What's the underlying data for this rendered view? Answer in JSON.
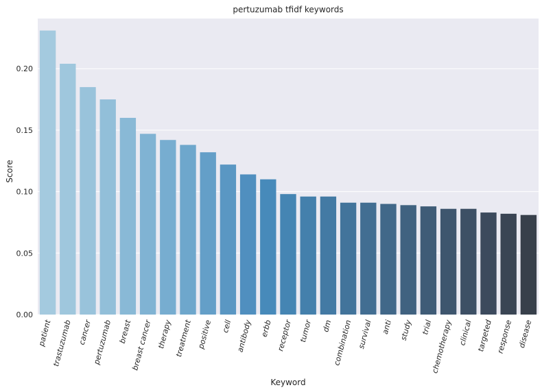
{
  "chart_data": {
    "type": "bar",
    "title": "pertuzumab tfidf keywords",
    "xlabel": "Keyword",
    "ylabel": "Score",
    "ylim": [
      0,
      0.2408
    ],
    "yticks": [
      "0.00",
      "0.05",
      "0.10",
      "0.15",
      "0.20"
    ],
    "grid": true,
    "categories": [
      "patient",
      "trastuzumab",
      "cancer",
      "pertuzumab",
      "breast",
      "breast cancer",
      "therapy",
      "treatment",
      "positive",
      "cell",
      "antibody",
      "erbb",
      "receptor",
      "tumor",
      "dm",
      "combination",
      "survival",
      "anti",
      "study",
      "trial",
      "chemotherapy",
      "clinical",
      "targeted",
      "response",
      "disease"
    ],
    "values": [
      0.231,
      0.204,
      0.185,
      0.175,
      0.16,
      0.147,
      0.142,
      0.138,
      0.132,
      0.122,
      0.114,
      0.11,
      0.098,
      0.096,
      0.096,
      0.091,
      0.091,
      0.09,
      0.089,
      0.088,
      0.086,
      0.086,
      0.083,
      0.082,
      0.081
    ]
  },
  "colors": {
    "plot_background": "#EAEAF2",
    "gridline": "#FFFFFF",
    "palette": [
      "#A4CADF",
      "#9FC7DD",
      "#99C3DB",
      "#92BFD9",
      "#89B9D6",
      "#80B3D3",
      "#77ADD0",
      "#6EA7CC",
      "#649FC8",
      "#5A97C3",
      "#508FBF",
      "#478ABA",
      "#4585B3",
      "#4480AC",
      "#437AA4",
      "#42749B",
      "#426E92",
      "#416889",
      "#406280",
      "#3F5C77",
      "#3E566E",
      "#3D5065",
      "#3C4A5D",
      "#3A4554",
      "#38404B"
    ]
  }
}
